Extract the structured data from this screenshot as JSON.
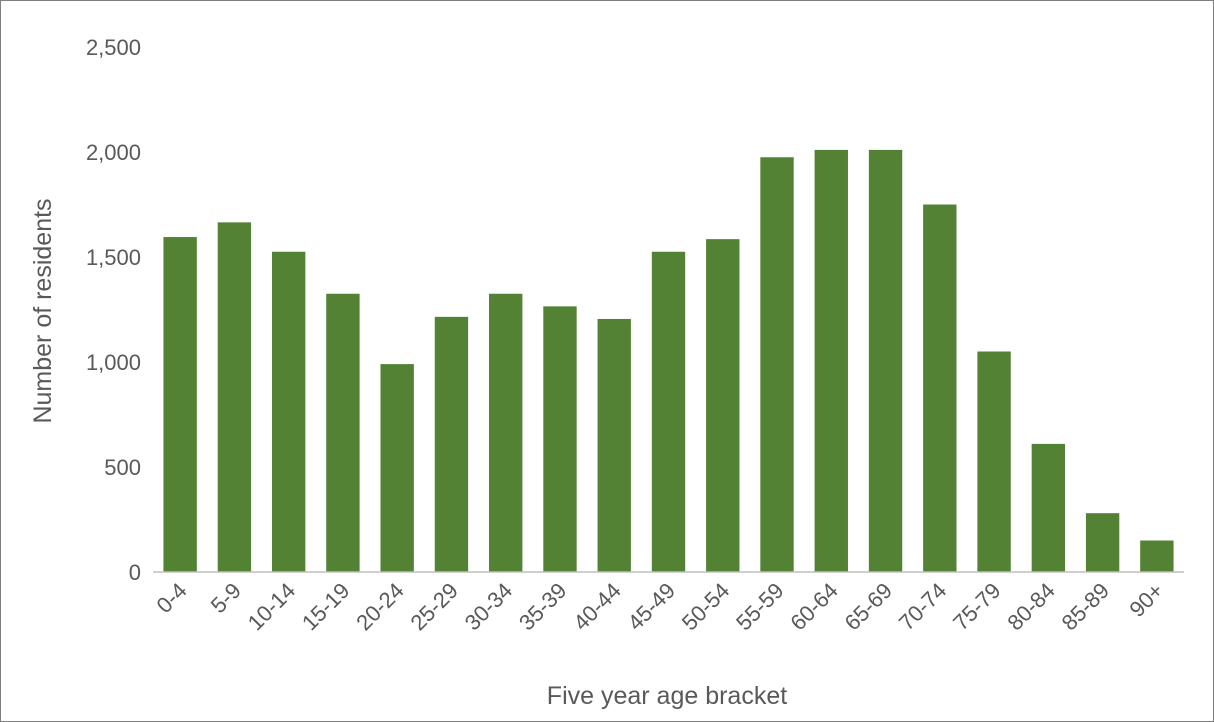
{
  "chart_data": {
    "type": "bar",
    "title": "",
    "xlabel": "Five year age bracket",
    "ylabel": "Number of residents",
    "categories": [
      "0-4",
      "5-9",
      "10-14",
      "15-19",
      "20-24",
      "25-29",
      "30-34",
      "35-39",
      "40-44",
      "45-49",
      "50-54",
      "55-59",
      "60-64",
      "65-69",
      "70-74",
      "75-79",
      "80-84",
      "85-89",
      "90+"
    ],
    "series": [
      {
        "values": [
          1595,
          1665,
          1525,
          1325,
          990,
          1215,
          1325,
          1265,
          1205,
          1525,
          1585,
          1975,
          2010,
          2010,
          1750,
          1050,
          610,
          280,
          150
        ]
      }
    ],
    "ylim": [
      0,
      2500
    ],
    "yticks": [
      0,
      500,
      1000,
      1500,
      2000,
      2500
    ],
    "ytick_labels": [
      "0",
      "500",
      "1,000",
      "1,500",
      "2,000",
      "2,500"
    ],
    "grid": false,
    "legend": "none",
    "colors": {
      "bar": "#548235",
      "axis": "#bfbfbf",
      "text": "#595959"
    }
  }
}
